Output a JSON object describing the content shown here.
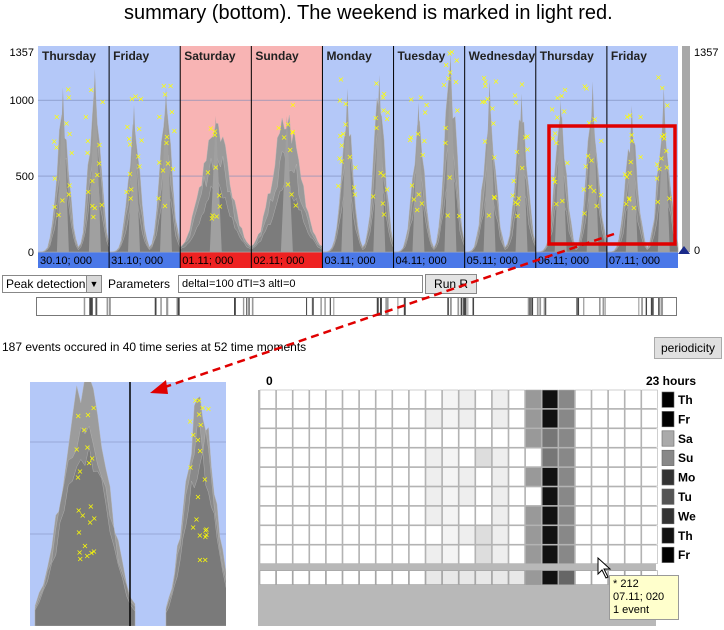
{
  "caption": "summary (bottom). The weekend is marked in light red.",
  "chart_data": {
    "type": "area",
    "y_ticks": [
      "1357",
      "1000",
      "500",
      "0"
    ],
    "y_right_ticks": [
      "1357",
      "0"
    ],
    "ylim": [
      0,
      1357
    ],
    "days": [
      {
        "label": "Thursday",
        "date": "30.10; 000",
        "weekend": false
      },
      {
        "label": "Friday",
        "date": "31.10; 000",
        "weekend": false
      },
      {
        "label": "Saturday",
        "date": "01.11; 000",
        "weekend": true
      },
      {
        "label": "Sunday",
        "date": "02.11; 000",
        "weekend": true
      },
      {
        "label": "Monday",
        "date": "03.11; 000",
        "weekend": false
      },
      {
        "label": "Tuesday",
        "date": "04.11; 000",
        "weekend": false
      },
      {
        "label": "Wednesday",
        "date": "05.11; 000",
        "weekend": false
      },
      {
        "label": "Thursday",
        "date": "06.11; 000",
        "weekend": false
      },
      {
        "label": "Friday",
        "date": "07.11; 000",
        "weekend": false
      }
    ],
    "colors": {
      "weekday": "#b4c8f8",
      "weekend": "#f8b4b4",
      "series": "#999999",
      "event": "#ffff00",
      "highlight": "#e00000"
    }
  },
  "toolbar": {
    "method": "Peak detection",
    "parameters_label": "Parameters",
    "parameters_value": "deltaI=100 dTI=3 altI=0",
    "run_button": "Run R"
  },
  "events_text": "187 events occured in 40 time series at 52 time moments",
  "periodicity_button": "periodicity",
  "grid": {
    "start_label": "0",
    "end_label": "23 hours",
    "rows": [
      "Th",
      "Fr",
      "Sa",
      "Su",
      "Mo",
      "Tu",
      "We",
      "Th",
      "Fr"
    ],
    "row_shades": [
      "#000000",
      "#000000",
      "#aaaaaa",
      "#888888",
      "#333333",
      "#555555",
      "#333333",
      "#111111",
      "#000000"
    ]
  },
  "tooltip": {
    "line1": "* 212",
    "line2": "07.11; 020",
    "line3": "1 event"
  }
}
